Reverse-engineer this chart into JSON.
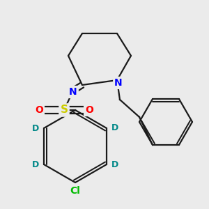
{
  "background_color": "#ebebeb",
  "line_color": "#1a1a1a",
  "line_width": 1.6,
  "atom_colors": {
    "N": "#0000ff",
    "S": "#cccc00",
    "O": "#ff0000",
    "Cl": "#00bb00",
    "D": "#008888",
    "C": "#1a1a1a"
  },
  "figsize": [
    3.0,
    3.0
  ],
  "dpi": 100
}
